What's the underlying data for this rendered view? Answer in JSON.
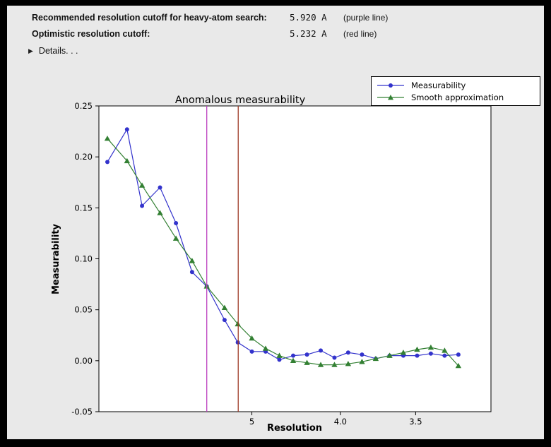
{
  "info": {
    "recommended": {
      "label": "Recommended resolution cutoff for heavy-atom search:",
      "value": "5.920 A",
      "note": "(purple line)"
    },
    "optimistic": {
      "label": "Optimistic resolution cutoff:",
      "value": "5.232 A",
      "note": "(red line)"
    }
  },
  "details": {
    "label": "Details. . ."
  },
  "chart_data": {
    "type": "line",
    "title": "Anomalous measurability",
    "xlabel": "Resolution",
    "ylabel": "Measurability",
    "ylim": [
      -0.05,
      0.25
    ],
    "y_ticks": [
      0.25,
      0.2,
      0.15,
      0.1,
      0.05,
      0.0,
      -0.05
    ],
    "x_axis": {
      "scale": "inverse_d_squared",
      "d_left_edge": 30.0,
      "d_right_edge": 3.15
    },
    "x_ticks": [
      {
        "d": 5.0,
        "label": "5"
      },
      {
        "d": 4.0,
        "label": "4.0"
      },
      {
        "d": 3.5,
        "label": "3.5"
      }
    ],
    "resolution_A": [
      17.5,
      11.0,
      9.1,
      7.75,
      6.95,
      6.35,
      5.92,
      5.5,
      5.24,
      5.0,
      4.795,
      4.613,
      4.45,
      4.303,
      4.17,
      4.049,
      3.938,
      3.835,
      3.74,
      3.651,
      3.569,
      3.492,
      3.42,
      3.352,
      3.288
    ],
    "series": [
      {
        "name": "Measurability",
        "color": "#3333cc",
        "marker": "circle",
        "values": [
          0.195,
          0.227,
          0.152,
          0.17,
          0.135,
          0.087,
          0.073,
          0.04,
          0.018,
          0.009,
          0.009,
          0.001,
          0.005,
          0.006,
          0.01,
          0.003,
          0.008,
          0.006,
          0.002,
          0.005,
          0.005,
          0.005,
          0.007,
          0.005,
          0.006
        ]
      },
      {
        "name": "Smooth approximation",
        "color": "#338033",
        "marker": "triangle",
        "values": [
          0.218,
          0.196,
          0.172,
          0.145,
          0.12,
          0.098,
          0.073,
          0.052,
          0.036,
          0.022,
          0.012,
          0.005,
          0.0,
          -0.002,
          -0.004,
          -0.004,
          -0.003,
          -0.001,
          0.002,
          0.005,
          0.008,
          0.011,
          0.013,
          0.01,
          -0.005
        ]
      }
    ],
    "cutoff_lines": [
      {
        "name": "purple",
        "resolution_A": 5.92,
        "color": "#bb3fbf"
      },
      {
        "name": "red",
        "resolution_A": 5.232,
        "color": "#9e3a26"
      }
    ],
    "legend_position": "top-right",
    "grid": false
  }
}
